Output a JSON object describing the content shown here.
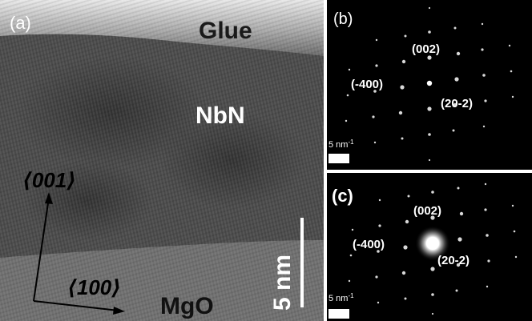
{
  "panel_a": {
    "label": "(a)",
    "layers": {
      "top": "Glue",
      "middle": "NbN",
      "bottom": "MgO"
    },
    "axes": {
      "vertical": "⟨001⟩",
      "horizontal": "⟨100⟩"
    },
    "scalebar": "5 nm"
  },
  "panel_b": {
    "label": "(b)",
    "spots": {
      "a": "(002)",
      "b": "(-400)",
      "c": "(20-2)"
    },
    "scalebar": "5 nm",
    "scalebar_unit_exp": "-1"
  },
  "panel_c": {
    "label": "(c)",
    "spots": {
      "a": "(002)",
      "b": "(-400)",
      "c": "(20-2)"
    },
    "scalebar": "5 nm",
    "scalebar_unit_exp": "-1"
  }
}
